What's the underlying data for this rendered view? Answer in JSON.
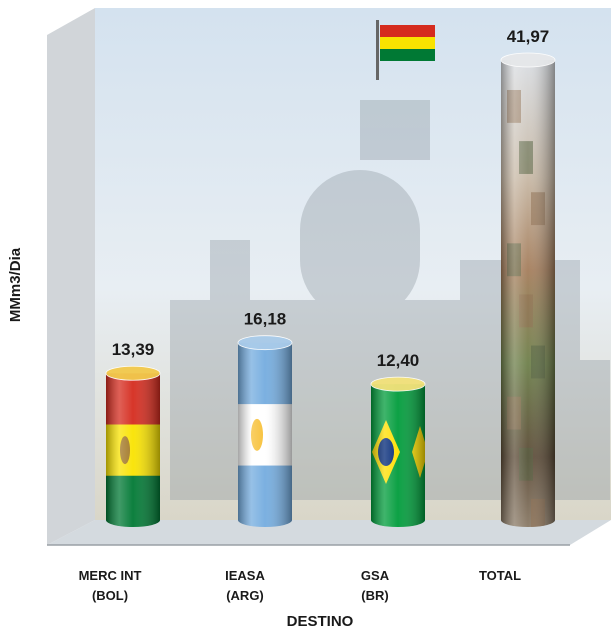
{
  "chart_data": {
    "type": "bar",
    "title": "",
    "xlabel": "DESTINO",
    "ylabel": "MMm3/Dia",
    "ylim": [
      0,
      45
    ],
    "categories": [
      {
        "line1": "MERC INT",
        "line2": "(BOL)"
      },
      {
        "line1": "IEASA",
        "line2": "(ARG)"
      },
      {
        "line1": "GSA",
        "line2": "(BR)"
      },
      {
        "line1": "TOTAL",
        "line2": ""
      }
    ],
    "values": [
      13.39,
      16.18,
      12.4,
      41.97
    ],
    "value_labels": [
      "13,39",
      "16,18",
      "12,40",
      "41,97"
    ],
    "bar_styles": [
      "bolivia-flag",
      "argentina-flag",
      "brazil-flag",
      "photo-collage"
    ],
    "grid": false,
    "legend": "none"
  },
  "colors": {
    "bolivia_red": "#d52b1e",
    "bolivia_yellow": "#f9e300",
    "bolivia_green": "#007934",
    "argentina_blue": "#74acdf",
    "argentina_sun": "#f6b40e",
    "brazil_green": "#009c3b",
    "brazil_yellow": "#ffdf00",
    "brazil_blue": "#002776",
    "background_sky": "#dfe9f2"
  }
}
